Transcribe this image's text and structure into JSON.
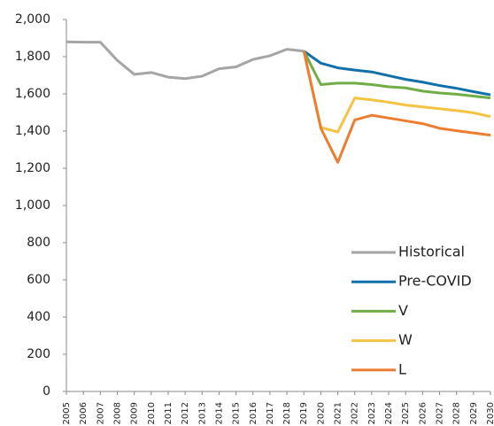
{
  "chart_data": {
    "type": "line",
    "categories": [
      "2005",
      "2006",
      "2007",
      "2008",
      "2009",
      "2010",
      "2011",
      "2012",
      "2013",
      "2014",
      "2015",
      "2016",
      "2017",
      "2018",
      "2019",
      "2020",
      "2021",
      "2022",
      "2023",
      "2024",
      "2025",
      "2026",
      "2027",
      "2028",
      "2029",
      "2030"
    ],
    "series": [
      {
        "name": "Historical",
        "color": "#a5a5a5",
        "values": [
          1880,
          1878,
          1878,
          1780,
          1705,
          1715,
          1690,
          1682,
          1695,
          1735,
          1745,
          1785,
          1805,
          1840,
          1830,
          null,
          null,
          null,
          null,
          null,
          null,
          null,
          null,
          null,
          null,
          null
        ]
      },
      {
        "name": "Pre-COVID",
        "color": "#1170aa",
        "values": [
          null,
          null,
          null,
          null,
          null,
          null,
          null,
          null,
          null,
          null,
          null,
          null,
          null,
          null,
          1830,
          1765,
          1740,
          1728,
          1718,
          1698,
          1678,
          1663,
          1645,
          1630,
          1612,
          1595
        ]
      },
      {
        "name": "V",
        "color": "#70ad47",
        "values": [
          null,
          null,
          null,
          null,
          null,
          null,
          null,
          null,
          null,
          null,
          null,
          null,
          null,
          null,
          1830,
          1650,
          1658,
          1658,
          1650,
          1638,
          1632,
          1615,
          1605,
          1598,
          1588,
          1578
        ]
      },
      {
        "name": "W",
        "color": "#f5c242",
        "values": [
          null,
          null,
          null,
          null,
          null,
          null,
          null,
          null,
          null,
          null,
          null,
          null,
          null,
          null,
          1830,
          1420,
          1395,
          1578,
          1568,
          1555,
          1540,
          1530,
          1520,
          1510,
          1498,
          1478
        ]
      },
      {
        "name": "L",
        "color": "#ed7d31",
        "values": [
          null,
          null,
          null,
          null,
          null,
          null,
          null,
          null,
          null,
          null,
          null,
          null,
          null,
          null,
          1830,
          1415,
          1232,
          1460,
          1485,
          1470,
          1455,
          1440,
          1415,
          1402,
          1390,
          1378
        ]
      }
    ],
    "ylim": [
      0,
      2000
    ],
    "yticks": [
      0,
      200,
      400,
      600,
      800,
      {
        "value": 1000,
        "label": "1,000"
      },
      {
        "value": 1200,
        "label": "1,200"
      },
      {
        "value": 1400,
        "label": "1,400"
      },
      {
        "value": 1600,
        "label": "1,600"
      },
      {
        "value": 1800,
        "label": "1,800"
      },
      {
        "value": 2000,
        "label": "2,000"
      }
    ],
    "grid": false,
    "legend": "lower right"
  }
}
